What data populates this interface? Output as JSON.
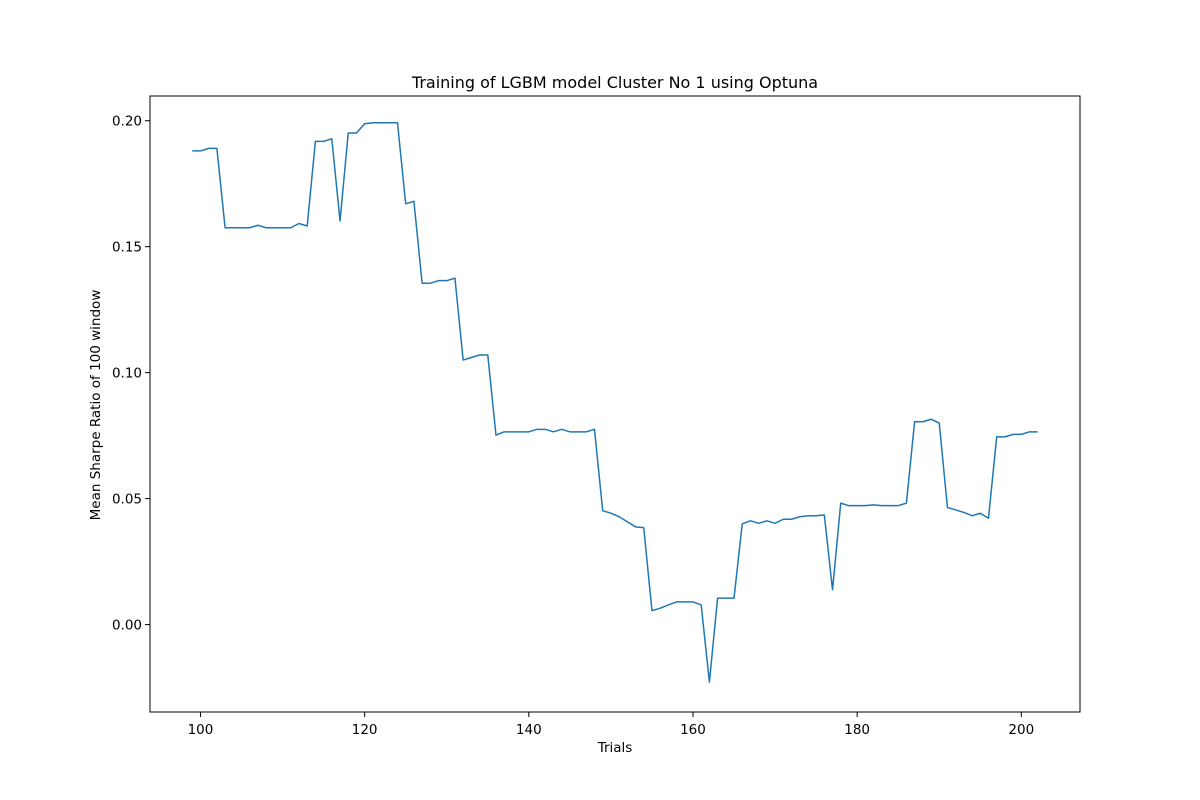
{
  "chart_data": {
    "type": "line",
    "title": "Training of LGBM model Cluster No 1 using Optuna",
    "xlabel": "Trials",
    "ylabel": "Mean Sharpe Ratio of 100 window",
    "xlim": [
      93.85,
      207.15
    ],
    "ylim": [
      -0.0347,
      0.2098
    ],
    "xticks": [
      {
        "value": 100,
        "label": "100"
      },
      {
        "value": 120,
        "label": "120"
      },
      {
        "value": 140,
        "label": "140"
      },
      {
        "value": 160,
        "label": "160"
      },
      {
        "value": 180,
        "label": "180"
      },
      {
        "value": 200,
        "label": "200"
      }
    ],
    "yticks": [
      {
        "value": 0.0,
        "label": "0.00"
      },
      {
        "value": 0.05,
        "label": "0.05"
      },
      {
        "value": 0.1,
        "label": "0.10"
      },
      {
        "value": 0.15,
        "label": "0.15"
      },
      {
        "value": 0.2,
        "label": "0.20"
      }
    ],
    "grid": false,
    "colors": {
      "line": "#1f77b4"
    },
    "series": [
      {
        "x": [
          99,
          100,
          101,
          102,
          103,
          104,
          105,
          106,
          107,
          108,
          109,
          110,
          111,
          112,
          113,
          114,
          115,
          116,
          117,
          118,
          119,
          120,
          121,
          122,
          123,
          124,
          125,
          126,
          127,
          128,
          129,
          130,
          131,
          132,
          133,
          134,
          135,
          136,
          137,
          138,
          139,
          140,
          141,
          142,
          143,
          144,
          145,
          146,
          147,
          148,
          149,
          150,
          151,
          152,
          153,
          154,
          155,
          156,
          157,
          158,
          159,
          160,
          161,
          162,
          163,
          164,
          165,
          166,
          167,
          168,
          169,
          170,
          171,
          172,
          173,
          174,
          175,
          176,
          177,
          178,
          179,
          180,
          181,
          182,
          183,
          184,
          185,
          186,
          187,
          188,
          189,
          190,
          191,
          192,
          193,
          194,
          195,
          196,
          197,
          198,
          199,
          200,
          201,
          202
        ],
        "y": [
          0.188,
          0.188,
          0.189,
          0.189,
          0.1575,
          0.1575,
          0.1575,
          0.1575,
          0.1585,
          0.1575,
          0.1575,
          0.1575,
          0.1575,
          0.1592,
          0.1582,
          0.1918,
          0.1918,
          0.1928,
          0.1602,
          0.1951,
          0.1951,
          0.1988,
          0.1992,
          0.1992,
          0.1992,
          0.1992,
          0.167,
          0.168,
          0.1355,
          0.1355,
          0.1365,
          0.1365,
          0.1375,
          0.105,
          0.106,
          0.107,
          0.107,
          0.0752,
          0.0765,
          0.0765,
          0.0765,
          0.0765,
          0.0775,
          0.0775,
          0.0765,
          0.0775,
          0.0765,
          0.0765,
          0.0765,
          0.0775,
          0.0452,
          0.0442,
          0.0428,
          0.0408,
          0.0388,
          0.0385,
          0.0055,
          0.0065,
          0.0078,
          0.009,
          0.009,
          0.009,
          0.0078,
          -0.0228,
          0.0105,
          0.0105,
          0.0105,
          0.04,
          0.0412,
          0.0402,
          0.0412,
          0.0402,
          0.0418,
          0.0418,
          0.0428,
          0.0432,
          0.0432,
          0.0435,
          0.0138,
          0.0482,
          0.0472,
          0.0472,
          0.0472,
          0.0475,
          0.0472,
          0.0472,
          0.0472,
          0.0482,
          0.0805,
          0.0805,
          0.0815,
          0.08,
          0.0465,
          0.0455,
          0.0445,
          0.0432,
          0.0442,
          0.0422,
          0.0745,
          0.0745,
          0.0755,
          0.0755,
          0.0765,
          0.0765
        ]
      }
    ]
  }
}
